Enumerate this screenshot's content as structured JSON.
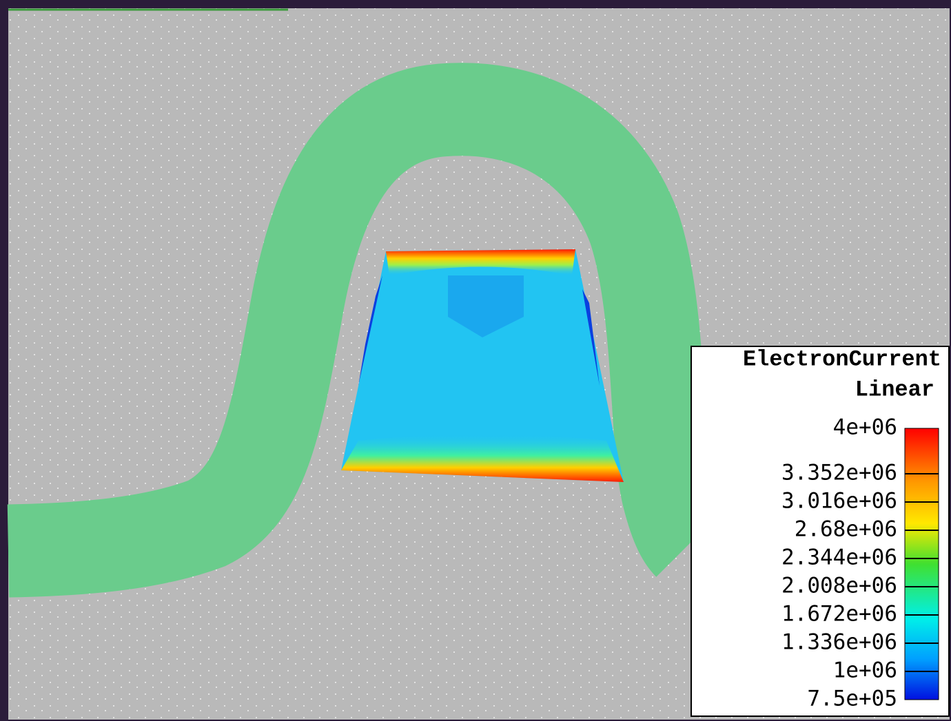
{
  "legend": {
    "title": "ElectronCurrent",
    "scale": "Linear",
    "labels": [
      "4e+06",
      "3.352e+06",
      "3.016e+06",
      "2.68e+06",
      "2.344e+06",
      "2.008e+06",
      "1.672e+06",
      "1.336e+06",
      "1e+06",
      "7.5e+05"
    ]
  }
}
